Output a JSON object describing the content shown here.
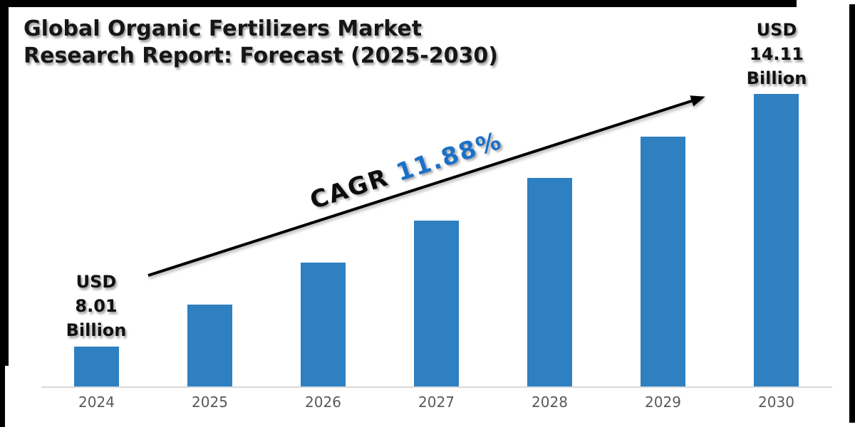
{
  "title": {
    "line1": "Global Organic Fertilizers Market",
    "line2": "Research Report: Forecast (2025-2030)"
  },
  "chart_data": {
    "type": "bar",
    "title": "Global Organic Fertilizers Market Research Report: Forecast (2025-2030)",
    "categories": [
      "2024",
      "2025",
      "2026",
      "2027",
      "2028",
      "2029",
      "2030"
    ],
    "values": [
      8.01,
      9.03,
      10.04,
      11.06,
      12.08,
      13.09,
      14.11
    ],
    "unit": "USD Billion",
    "value_labels_shown": {
      "2024": "USD 8.01 Billion",
      "2030": "USD 14.11 Billion"
    },
    "xlabel": "",
    "ylabel": "",
    "grid": false,
    "legend": "none",
    "y_axis_visible": false,
    "bar_color": "#2E80C1",
    "axis_line_color": "#D8D8D8",
    "tick_label_color": "#595959",
    "annotations": {
      "cagr_prefix": "CAGR ",
      "cagr_value": "11.88%",
      "cagr_color": "#1B70C8",
      "start_label_lines": [
        "USD",
        "8.01",
        "Billion"
      ],
      "end_label_lines": [
        "USD",
        "14.11",
        "Billion"
      ]
    }
  }
}
